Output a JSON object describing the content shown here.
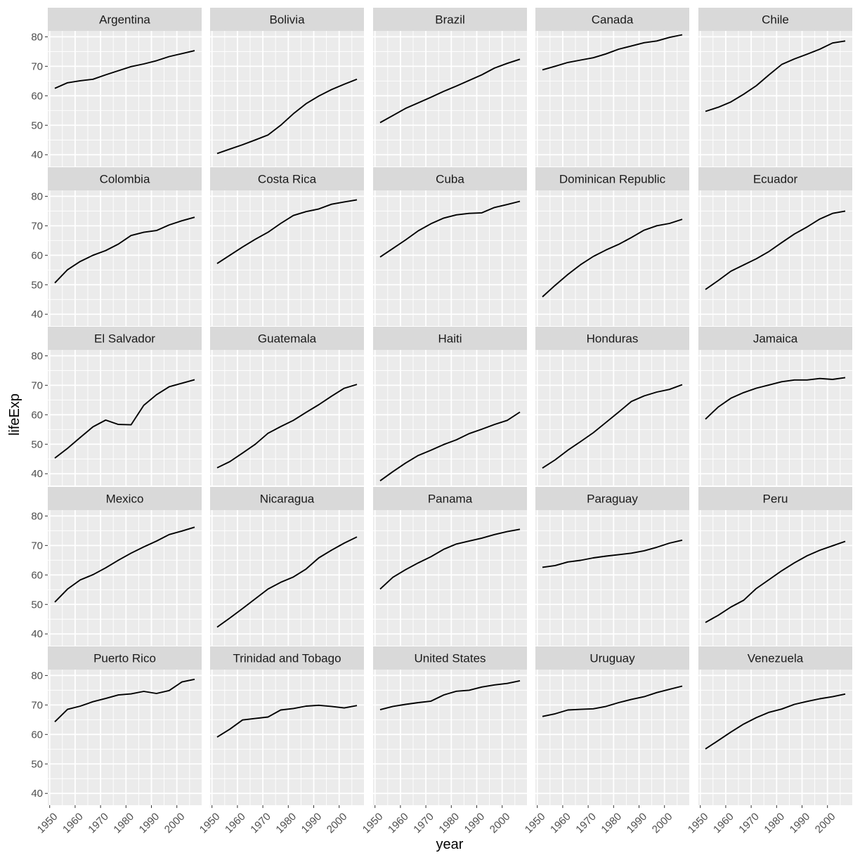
{
  "chart_data": {
    "type": "line",
    "xlabel": "year",
    "ylabel": "lifeExp",
    "xlim": [
      1952,
      2007
    ],
    "ylim": [
      36,
      82
    ],
    "x_ticks": [
      1950,
      1960,
      1970,
      1980,
      1990,
      2000
    ],
    "y_ticks": [
      40,
      50,
      60,
      70,
      80
    ],
    "grid": true,
    "x": [
      1952,
      1957,
      1962,
      1967,
      1972,
      1977,
      1982,
      1987,
      1992,
      1997,
      2002,
      2007
    ],
    "facets": [
      {
        "name": "Argentina",
        "values": [
          62.5,
          64.4,
          65.1,
          65.6,
          67.1,
          68.5,
          69.9,
          70.8,
          71.9,
          73.3,
          74.3,
          75.3
        ]
      },
      {
        "name": "Bolivia",
        "values": [
          40.4,
          41.9,
          43.4,
          45.0,
          46.7,
          50.0,
          53.9,
          57.3,
          59.9,
          62.1,
          63.9,
          65.6
        ]
      },
      {
        "name": "Brazil",
        "values": [
          50.9,
          53.3,
          55.7,
          57.6,
          59.5,
          61.5,
          63.3,
          65.2,
          67.1,
          69.4,
          71.0,
          72.4
        ]
      },
      {
        "name": "Canada",
        "values": [
          68.8,
          70.0,
          71.3,
          72.1,
          72.9,
          74.2,
          75.8,
          76.9,
          78.0,
          78.6,
          79.8,
          80.7
        ]
      },
      {
        "name": "Chile",
        "values": [
          54.7,
          56.1,
          57.9,
          60.5,
          63.4,
          67.1,
          70.6,
          72.5,
          74.1,
          75.8,
          77.9,
          78.6
        ]
      },
      {
        "name": "Colombia",
        "values": [
          50.6,
          55.1,
          57.9,
          60.0,
          61.6,
          63.8,
          66.7,
          67.8,
          68.4,
          70.3,
          71.7,
          72.9
        ]
      },
      {
        "name": "Costa Rica",
        "values": [
          57.2,
          60.0,
          62.8,
          65.4,
          67.8,
          70.8,
          73.5,
          74.8,
          75.7,
          77.3,
          78.1,
          78.8
        ]
      },
      {
        "name": "Cuba",
        "values": [
          59.4,
          62.3,
          65.2,
          68.3,
          70.7,
          72.6,
          73.7,
          74.2,
          74.4,
          76.2,
          77.2,
          78.3
        ]
      },
      {
        "name": "Dominican Republic",
        "values": [
          45.9,
          49.8,
          53.5,
          56.8,
          59.6,
          61.8,
          63.7,
          66.0,
          68.5,
          70.0,
          70.8,
          72.2
        ]
      },
      {
        "name": "Ecuador",
        "values": [
          48.4,
          51.4,
          54.6,
          56.7,
          58.8,
          61.3,
          64.3,
          67.2,
          69.6,
          72.3,
          74.2,
          75.0
        ]
      },
      {
        "name": "El Salvador",
        "values": [
          45.3,
          48.6,
          52.3,
          55.9,
          58.2,
          56.7,
          56.6,
          63.2,
          66.8,
          69.5,
          70.7,
          71.9
        ]
      },
      {
        "name": "Guatemala",
        "values": [
          42.0,
          44.1,
          47.0,
          50.0,
          53.7,
          56.0,
          58.1,
          60.8,
          63.4,
          66.3,
          68.98,
          70.3
        ]
      },
      {
        "name": "Haiti",
        "values": [
          37.6,
          40.7,
          43.6,
          46.2,
          48.0,
          49.9,
          51.5,
          53.6,
          55.1,
          56.7,
          58.1,
          60.9
        ]
      },
      {
        "name": "Honduras",
        "values": [
          41.9,
          44.7,
          48.0,
          50.9,
          53.9,
          57.4,
          60.9,
          64.5,
          66.4,
          67.7,
          68.6,
          70.2
        ]
      },
      {
        "name": "Jamaica",
        "values": [
          58.5,
          62.6,
          65.6,
          67.5,
          69.0,
          70.1,
          71.2,
          71.8,
          71.8,
          72.3,
          72.0,
          72.6
        ]
      },
      {
        "name": "Mexico",
        "values": [
          50.8,
          55.2,
          58.3,
          60.1,
          62.4,
          65.0,
          67.4,
          69.5,
          71.5,
          73.7,
          74.9,
          76.2
        ]
      },
      {
        "name": "Nicaragua",
        "values": [
          42.3,
          45.4,
          48.6,
          51.9,
          55.2,
          57.5,
          59.3,
          62.0,
          65.8,
          68.4,
          70.8,
          72.9
        ]
      },
      {
        "name": "Panama",
        "values": [
          55.2,
          59.2,
          61.8,
          64.1,
          66.2,
          68.7,
          70.5,
          71.5,
          72.5,
          73.7,
          74.7,
          75.5
        ]
      },
      {
        "name": "Paraguay",
        "values": [
          62.6,
          63.2,
          64.4,
          64.95,
          65.8,
          66.4,
          66.9,
          67.4,
          68.2,
          69.4,
          70.8,
          71.8
        ]
      },
      {
        "name": "Peru",
        "values": [
          43.9,
          46.3,
          49.1,
          51.4,
          55.4,
          58.4,
          61.4,
          64.1,
          66.5,
          68.4,
          69.9,
          71.4
        ]
      },
      {
        "name": "Puerto Rico",
        "values": [
          64.3,
          68.5,
          69.6,
          71.1,
          72.2,
          73.4,
          73.75,
          74.6,
          73.9,
          74.9,
          77.8,
          78.7
        ]
      },
      {
        "name": "Trinidad and Tobago",
        "values": [
          59.1,
          61.8,
          64.9,
          65.4,
          65.9,
          68.3,
          68.8,
          69.6,
          69.9,
          69.5,
          68.98,
          69.8
        ]
      },
      {
        "name": "United States",
        "values": [
          68.4,
          69.5,
          70.2,
          70.8,
          71.3,
          73.4,
          74.65,
          75.0,
          76.1,
          76.8,
          77.3,
          78.2
        ]
      },
      {
        "name": "Uruguay",
        "values": [
          66.1,
          67.0,
          68.3,
          68.5,
          68.7,
          69.5,
          70.8,
          71.9,
          72.8,
          74.2,
          75.3,
          76.4
        ]
      },
      {
        "name": "Venezuela",
        "values": [
          55.1,
          57.9,
          60.8,
          63.5,
          65.7,
          67.5,
          68.6,
          70.2,
          71.2,
          72.1,
          72.8,
          73.7
        ]
      }
    ]
  }
}
